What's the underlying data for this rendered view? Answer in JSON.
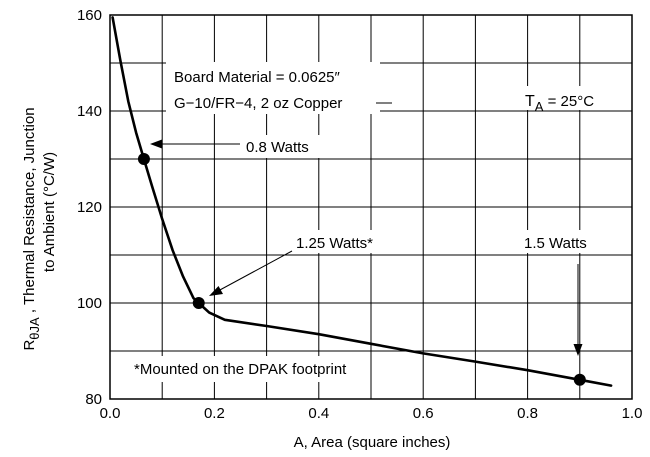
{
  "chart_data": {
    "type": "line",
    "xlabel": "A, Area (square inches)",
    "ylabel": {
      "prefix": "R",
      "sub": "θJA",
      "rest": " , Thermal Resistance, Junction",
      "line2": "to Ambient (°C/W)"
    },
    "xlim": [
      0.0,
      1.0
    ],
    "ylim": [
      80,
      160
    ],
    "x_ticks": [
      0.0,
      0.2,
      0.4,
      0.6,
      0.8,
      1.0
    ],
    "x_tick_labels": [
      "0.0",
      "0.2",
      "0.4",
      "0.6",
      "0.8",
      "1.0"
    ],
    "x_minor_step": 0.1,
    "y_ticks": [
      80,
      100,
      120,
      140,
      160
    ],
    "y_tick_labels": [
      "80",
      "100",
      "120",
      "140",
      "160"
    ],
    "y_minor_step": 10,
    "grid": true,
    "series": [
      {
        "x": [
          0.005,
          0.02,
          0.035,
          0.05,
          0.065,
          0.08,
          0.1,
          0.12,
          0.14,
          0.16,
          0.17,
          0.19,
          0.22,
          0.3,
          0.4,
          0.5,
          0.6,
          0.7,
          0.8,
          0.9,
          0.96
        ],
        "y": [
          159.5,
          150.5,
          142,
          135.5,
          130,
          124.5,
          117.5,
          111,
          105.5,
          101,
          100,
          98,
          96.5,
          95.2,
          93.5,
          91.5,
          89.5,
          87.8,
          86,
          84,
          82.8
        ]
      }
    ],
    "markers": [
      {
        "x": 0.065,
        "y": 130
      },
      {
        "x": 0.17,
        "y": 100
      },
      {
        "x": 0.9,
        "y": 84
      }
    ],
    "annotations": {
      "board_line1": "Board Material = 0.0625″",
      "board_line2": "G−10/FR−4, 2 oz Copper",
      "ta_prefix": "T",
      "ta_sub": "A",
      "ta_rest": " = 25°C",
      "watts_08": "0.8 Watts",
      "watts_125": "1.25 Watts*",
      "watts_15": "1.5 Watts",
      "footnote": "*Mounted on the DPAK footprint"
    }
  }
}
